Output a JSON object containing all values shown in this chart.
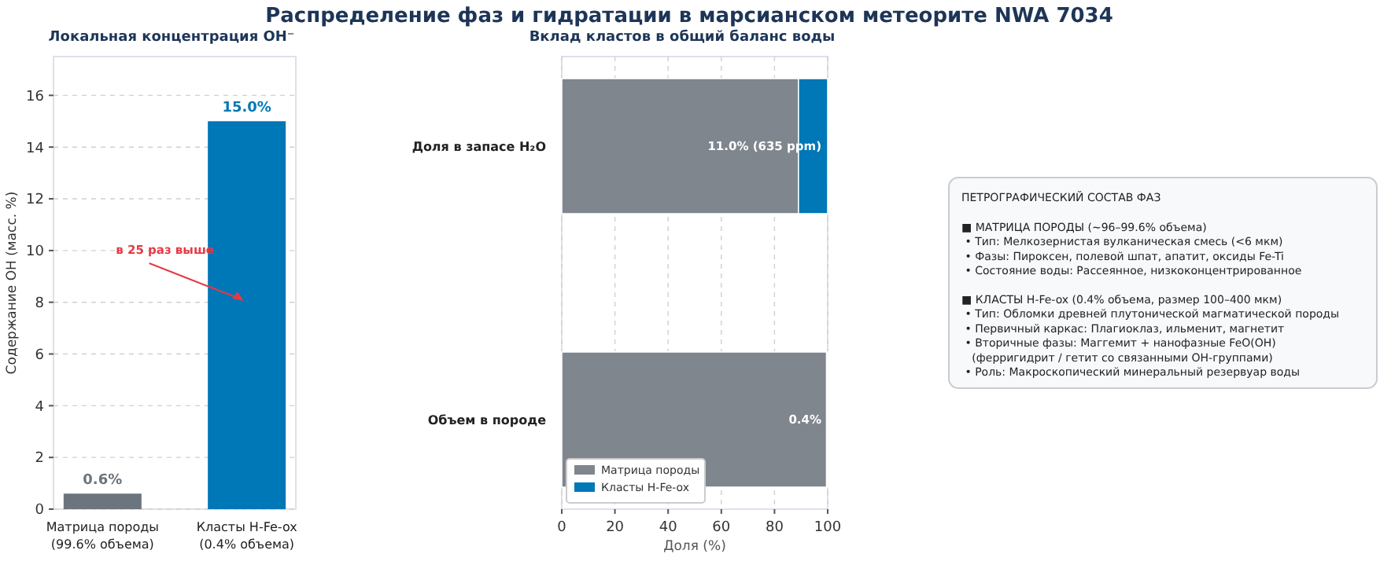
{
  "chart_data": [
    {
      "type": "other",
      "title": "Распределение фаз и гидратации в марсианском метеорите NWA 7034"
    },
    {
      "type": "bar",
      "title": "Локальная концентрация OH⁻",
      "ylabel": "Содержание OH (масс. %)",
      "categories": [
        "Матрица породы\n(99.6% объема)",
        "Класты H-Fe-ox\n(0.4% объема)"
      ],
      "values": [
        0.6,
        15.0
      ],
      "colors": [
        "#6c757d",
        "#0077b6"
      ],
      "value_labels": [
        "0.6%",
        "15.0%"
      ],
      "ylim": [
        0,
        17.5
      ],
      "yticks": [
        0,
        2,
        4,
        6,
        8,
        10,
        12,
        14,
        16
      ],
      "grid": "y",
      "annotations": [
        "в 25 раз выше"
      ]
    },
    {
      "type": "bar",
      "orientation": "horizontal",
      "stacked": true,
      "title": "Вклад кластов в общий баланс воды",
      "xlabel": "Доля (%)",
      "categories": [
        "Доля в запасе H₂O",
        "Объем в породе"
      ],
      "series": [
        {
          "name": "Матрица породы",
          "color": "#7f868d",
          "values": [
            89,
            99.6
          ]
        },
        {
          "name": "Класты H-Fe-ox",
          "color": "#0077b6",
          "values": [
            11,
            0.4
          ],
          "value_labels": [
            "11.0% (635 ppm)",
            "0.4%"
          ]
        }
      ],
      "xlim": [
        0,
        100
      ],
      "xticks": [
        0,
        20,
        40,
        60,
        80,
        100
      ],
      "grid": "x",
      "legend": "bottom left"
    },
    {
      "type": "other",
      "title": "ПЕТРОГРАФИЧЕСКИЙ СОСТАВ ФАЗ",
      "annotations": [
        "■ МАТРИЦА ПОРОДЫ (~96–99.6% объема)\n • Тип: Мелкозернистая вулканическая смесь (<6 мкм)\n • Фазы: Пироксен, полевой шпат, апатит, оксиды Fe-Ti\n • Состояние воды: Рассеянное, низкоконцентрированное",
        "■ КЛАСТЫ H-Fe-ox (0.4% объема, размер 100–400 мкм)\n • Тип: Обломки древней плутонической магматической породы\n • Первичный каркас: Плагиоклаз, ильменит, магнетит\n • Вторичные фазы: Маггемит + нанофазные FeO(OH)\n   (ферригидрит / гетит со связанными OH-группами)\n • Роль: Макроскопический минеральный резервуар воды"
      ]
    }
  ]
}
